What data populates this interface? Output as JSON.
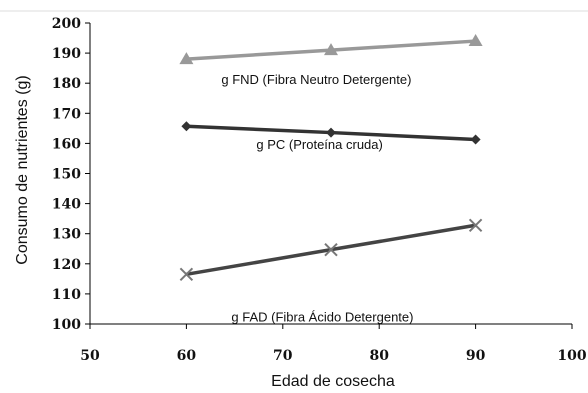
{
  "chart_data": {
    "type": "line",
    "title": "",
    "xlabel": "Edad de cosecha",
    "ylabel": "Consumo de nutrientes (g)",
    "xlim": [
      50,
      100
    ],
    "ylim": [
      100,
      200
    ],
    "xticks": [
      "50",
      "60",
      "70",
      "80",
      "90",
      "100"
    ],
    "yticks": [
      "100",
      "110",
      "120",
      "130",
      "140",
      "150",
      "160",
      "170",
      "180",
      "190",
      "200"
    ],
    "grid": false,
    "legend": "none",
    "series": [
      {
        "name": "g FND (Fibra Neutro Detergente)",
        "x": [
          60,
          75,
          90
        ],
        "y": [
          188,
          191,
          194
        ],
        "marker": "triangle",
        "color": "#999999"
      },
      {
        "name": "g PC (Proteína cruda)",
        "x": [
          60,
          75,
          90
        ],
        "y": [
          165.7,
          163.6,
          161.3
        ],
        "marker": "diamond",
        "color": "#333333"
      },
      {
        "name": "g FAD (Fibra Ácido Detergente)",
        "x": [
          60,
          75,
          90
        ],
        "y": [
          116.5,
          124.7,
          132.8
        ],
        "marker": "x",
        "color": "#444444"
      }
    ]
  }
}
